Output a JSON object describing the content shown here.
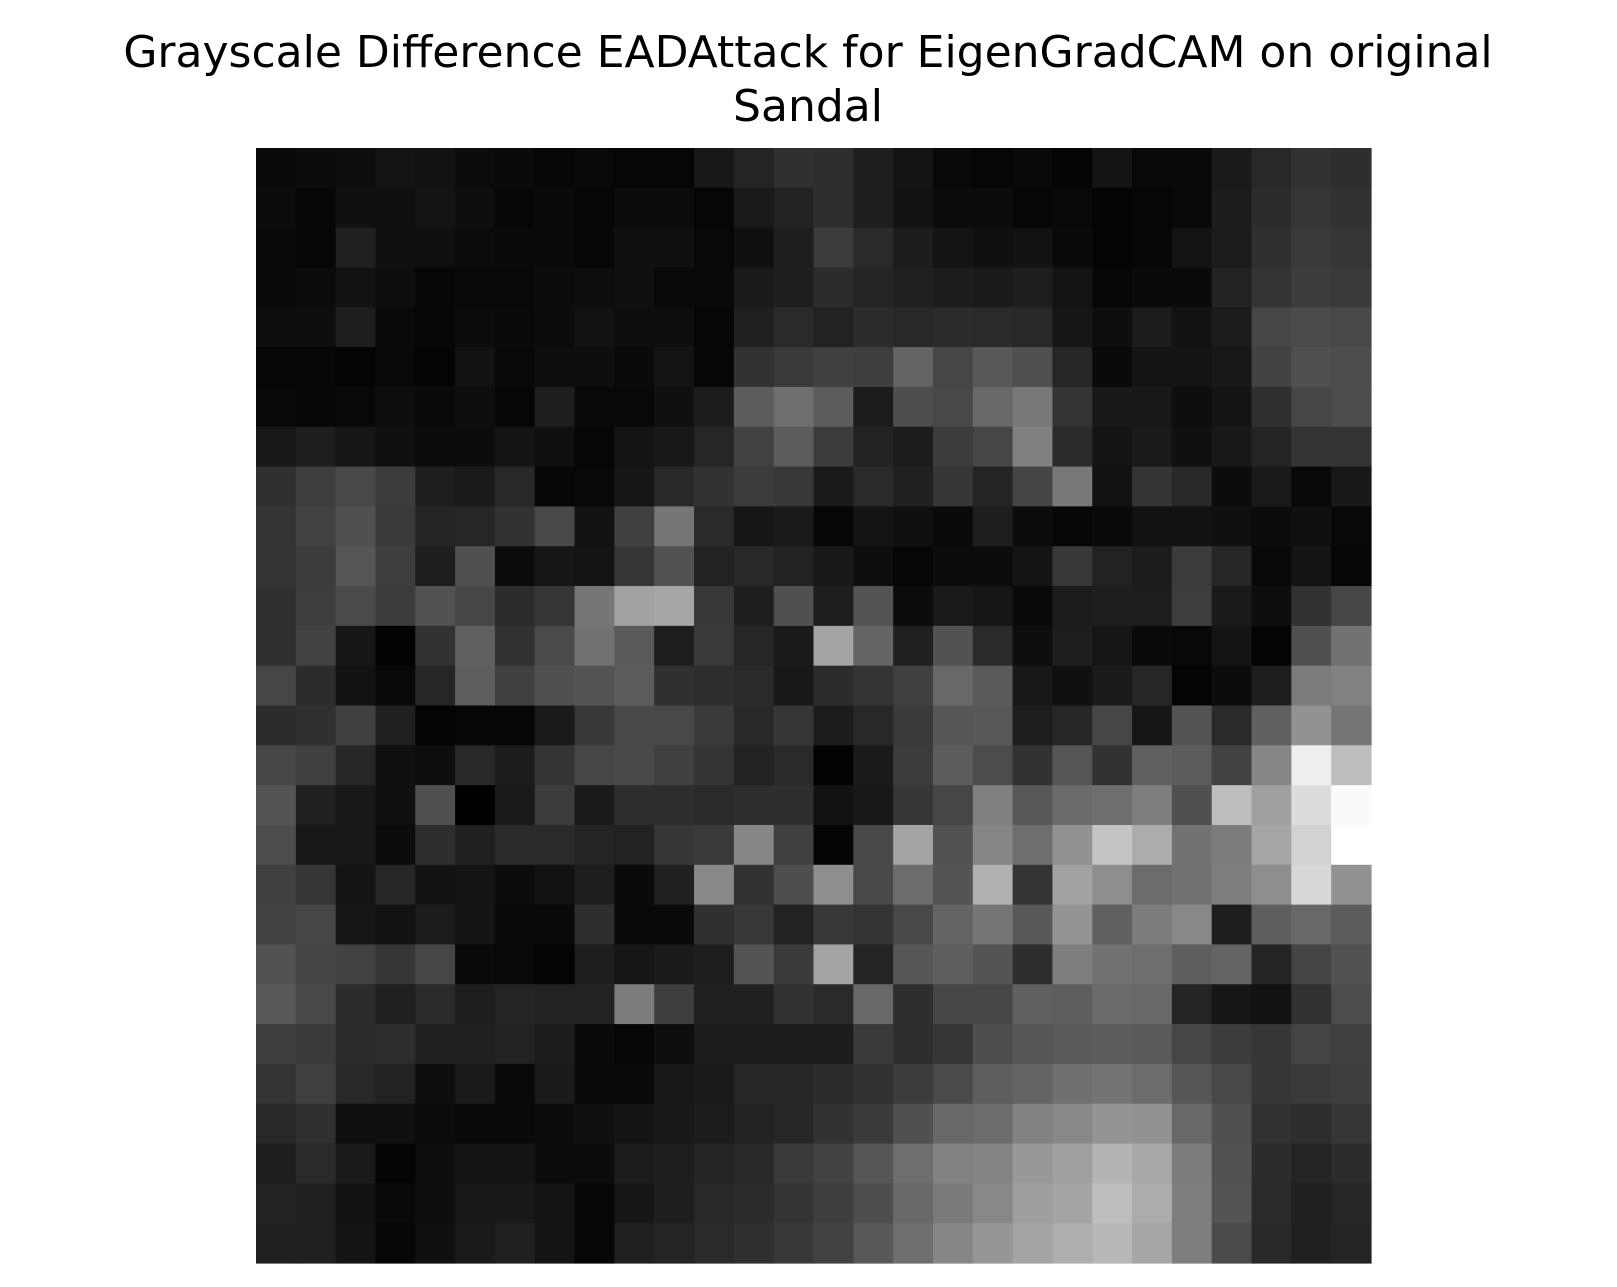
{
  "chart_data": {
    "type": "heatmap",
    "title_line1": "Grayscale Difference EADAttack for EigenGradCAM on original",
    "title_line2": "Sandal",
    "colormap": "gray",
    "axes_visible": false,
    "grid": false,
    "legend": "none",
    "value_range": [
      0,
      255
    ],
    "rows": 28,
    "cols": 28,
    "values": [
      [
        10,
        12,
        14,
        20,
        18,
        12,
        10,
        6,
        8,
        6,
        6,
        24,
        36,
        48,
        46,
        30,
        20,
        8,
        6,
        8,
        4,
        20,
        8,
        8,
        26,
        40,
        50,
        46
      ],
      [
        12,
        6,
        16,
        16,
        20,
        14,
        6,
        10,
        6,
        12,
        12,
        6,
        26,
        34,
        46,
        30,
        18,
        12,
        12,
        6,
        8,
        4,
        6,
        8,
        28,
        44,
        54,
        50
      ],
      [
        10,
        6,
        32,
        16,
        16,
        12,
        10,
        10,
        6,
        16,
        16,
        8,
        16,
        30,
        60,
        42,
        28,
        20,
        16,
        18,
        10,
        4,
        6,
        20,
        28,
        48,
        58,
        54
      ],
      [
        10,
        12,
        18,
        14,
        6,
        8,
        8,
        12,
        14,
        16,
        8,
        8,
        26,
        30,
        44,
        36,
        32,
        28,
        26,
        30,
        20,
        6,
        10,
        10,
        34,
        52,
        60,
        58
      ],
      [
        14,
        14,
        30,
        8,
        6,
        12,
        10,
        12,
        18,
        14,
        14,
        6,
        32,
        42,
        34,
        44,
        40,
        44,
        42,
        40,
        22,
        14,
        28,
        18,
        28,
        70,
        74,
        72
      ],
      [
        6,
        6,
        4,
        8,
        4,
        18,
        8,
        14,
        14,
        10,
        20,
        6,
        50,
        58,
        64,
        62,
        100,
        70,
        88,
        80,
        38,
        10,
        20,
        20,
        24,
        66,
        80,
        76
      ],
      [
        8,
        6,
        8,
        14,
        10,
        14,
        6,
        30,
        8,
        8,
        16,
        28,
        92,
        110,
        92,
        28,
        78,
        72,
        104,
        120,
        52,
        24,
        24,
        14,
        20,
        48,
        70,
        76
      ],
      [
        24,
        30,
        22,
        16,
        12,
        12,
        20,
        16,
        6,
        20,
        24,
        38,
        66,
        92,
        60,
        34,
        28,
        60,
        70,
        128,
        42,
        20,
        26,
        16,
        24,
        36,
        52,
        52
      ],
      [
        48,
        62,
        72,
        60,
        30,
        26,
        40,
        6,
        8,
        22,
        40,
        50,
        60,
        56,
        26,
        42,
        32,
        54,
        36,
        68,
        120,
        18,
        52,
        40,
        12,
        26,
        8,
        24
      ],
      [
        52,
        66,
        80,
        58,
        36,
        38,
        50,
        72,
        18,
        64,
        118,
        42,
        22,
        26,
        6,
        20,
        16,
        10,
        30,
        12,
        6,
        10,
        18,
        18,
        16,
        12,
        16,
        8
      ],
      [
        52,
        60,
        86,
        62,
        30,
        80,
        12,
        22,
        20,
        54,
        82,
        34,
        40,
        34,
        24,
        14,
        6,
        12,
        12,
        20,
        56,
        34,
        28,
        60,
        38,
        8,
        20,
        6
      ],
      [
        48,
        62,
        74,
        60,
        82,
        70,
        44,
        54,
        118,
        162,
        166,
        56,
        30,
        80,
        30,
        84,
        12,
        26,
        22,
        10,
        28,
        30,
        30,
        62,
        26,
        14,
        50,
        70
      ],
      [
        48,
        66,
        22,
        2,
        50,
        96,
        50,
        74,
        114,
        90,
        30,
        58,
        38,
        26,
        164,
        100,
        32,
        82,
        42,
        14,
        30,
        22,
        10,
        8,
        20,
        4,
        80,
        114
      ],
      [
        70,
        44,
        18,
        8,
        38,
        94,
        64,
        80,
        84,
        92,
        48,
        46,
        42,
        24,
        44,
        52,
        64,
        104,
        90,
        24,
        16,
        26,
        38,
        4,
        12,
        30,
        124,
        130
      ],
      [
        44,
        48,
        64,
        32,
        4,
        6,
        6,
        26,
        56,
        72,
        72,
        58,
        40,
        54,
        28,
        40,
        58,
        86,
        88,
        30,
        38,
        70,
        22,
        84,
        42,
        96,
        146,
        118
      ],
      [
        70,
        64,
        38,
        16,
        14,
        40,
        28,
        52,
        70,
        72,
        64,
        52,
        34,
        42,
        2,
        26,
        60,
        92,
        76,
        50,
        86,
        50,
        96,
        92,
        66,
        134,
        238,
        190
      ],
      [
        84,
        32,
        24,
        16,
        80,
        0,
        26,
        60,
        26,
        46,
        46,
        42,
        46,
        46,
        18,
        24,
        54,
        70,
        128,
        88,
        106,
        110,
        126,
        80,
        190,
        160,
        220,
        250
      ],
      [
        76,
        24,
        24,
        12,
        46,
        32,
        42,
        42,
        36,
        34,
        54,
        58,
        134,
        64,
        4,
        72,
        164,
        82,
        134,
        110,
        146,
        196,
        172,
        114,
        124,
        166,
        210,
        255
      ],
      [
        64,
        54,
        20,
        38,
        18,
        20,
        12,
        18,
        30,
        10,
        32,
        136,
        50,
        78,
        142,
        72,
        108,
        84,
        176,
        52,
        162,
        142,
        108,
        114,
        126,
        142,
        216,
        146
      ],
      [
        66,
        70,
        22,
        18,
        28,
        20,
        10,
        10,
        46,
        10,
        10,
        48,
        56,
        34,
        56,
        52,
        72,
        100,
        118,
        88,
        148,
        96,
        124,
        136,
        30,
        94,
        104,
        92
      ],
      [
        82,
        68,
        66,
        54,
        70,
        10,
        8,
        4,
        30,
        22,
        26,
        30,
        84,
        58,
        164,
        36,
        86,
        94,
        84,
        46,
        126,
        114,
        110,
        94,
        100,
        36,
        68,
        82
      ],
      [
        88,
        72,
        44,
        32,
        42,
        30,
        36,
        34,
        34,
        124,
        62,
        32,
        32,
        50,
        42,
        104,
        46,
        70,
        70,
        96,
        94,
        106,
        104,
        36,
        22,
        18,
        50,
        76
      ],
      [
        62,
        58,
        44,
        46,
        32,
        32,
        34,
        28,
        10,
        6,
        14,
        28,
        28,
        28,
        28,
        58,
        46,
        54,
        78,
        86,
        90,
        92,
        90,
        70,
        60,
        54,
        68,
        64
      ],
      [
        52,
        64,
        40,
        34,
        14,
        26,
        10,
        26,
        10,
        10,
        24,
        26,
        38,
        38,
        44,
        50,
        60,
        74,
        94,
        100,
        112,
        116,
        108,
        86,
        72,
        54,
        58,
        62
      ],
      [
        40,
        48,
        16,
        16,
        12,
        10,
        10,
        12,
        16,
        20,
        24,
        28,
        34,
        38,
        50,
        58,
        80,
        104,
        108,
        130,
        136,
        148,
        146,
        104,
        80,
        50,
        46,
        54
      ],
      [
        30,
        42,
        26,
        4,
        14,
        20,
        20,
        12,
        12,
        28,
        30,
        36,
        40,
        58,
        66,
        86,
        110,
        130,
        132,
        152,
        160,
        180,
        168,
        124,
        82,
        44,
        36,
        44
      ],
      [
        34,
        32,
        18,
        10,
        14,
        24,
        24,
        20,
        6,
        22,
        30,
        40,
        44,
        52,
        62,
        78,
        104,
        122,
        136,
        158,
        164,
        190,
        172,
        126,
        84,
        42,
        32,
        38
      ],
      [
        32,
        32,
        20,
        6,
        16,
        26,
        32,
        20,
        6,
        32,
        36,
        42,
        48,
        56,
        66,
        88,
        110,
        134,
        150,
        164,
        174,
        184,
        166,
        126,
        74,
        40,
        32,
        36
      ]
    ]
  }
}
